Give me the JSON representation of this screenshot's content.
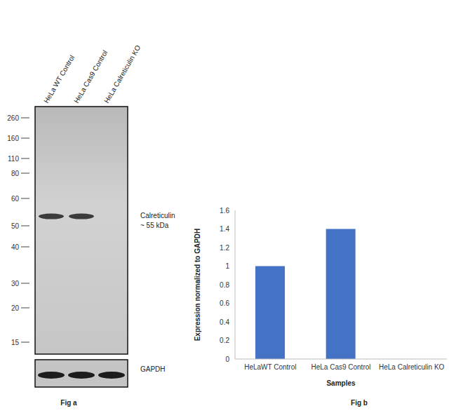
{
  "figure_a": {
    "caption": "Fig a",
    "lanes": [
      "HeLa WT Control",
      "HeLa Cas9 Control",
      "HeLa Calreticulin KO"
    ],
    "markers_kda": [
      260,
      160,
      110,
      80,
      60,
      50,
      40,
      30,
      20,
      15
    ],
    "band": {
      "label": "Calreticulin",
      "size_label": "~ 55 kDa",
      "size_kda": 55,
      "present": [
        true,
        true,
        false
      ]
    },
    "loading_control": "GAPDH"
  },
  "chart_data": {
    "type": "bar",
    "caption": "Fig b",
    "categories": [
      "HeLaWT Control",
      "HeLa Cas9 Control",
      "HeLa Calreticulin KO"
    ],
    "values": [
      1,
      1.4,
      0
    ],
    "color": "#4472c4",
    "xlabel": "Samples",
    "ylabel": "Expression normalized to GAPDH",
    "ylim": [
      0,
      1.6
    ],
    "yticks": [
      0,
      0.2,
      0.4,
      0.6,
      0.8,
      1,
      1.2,
      1.4,
      1.6
    ],
    "grid": false
  }
}
